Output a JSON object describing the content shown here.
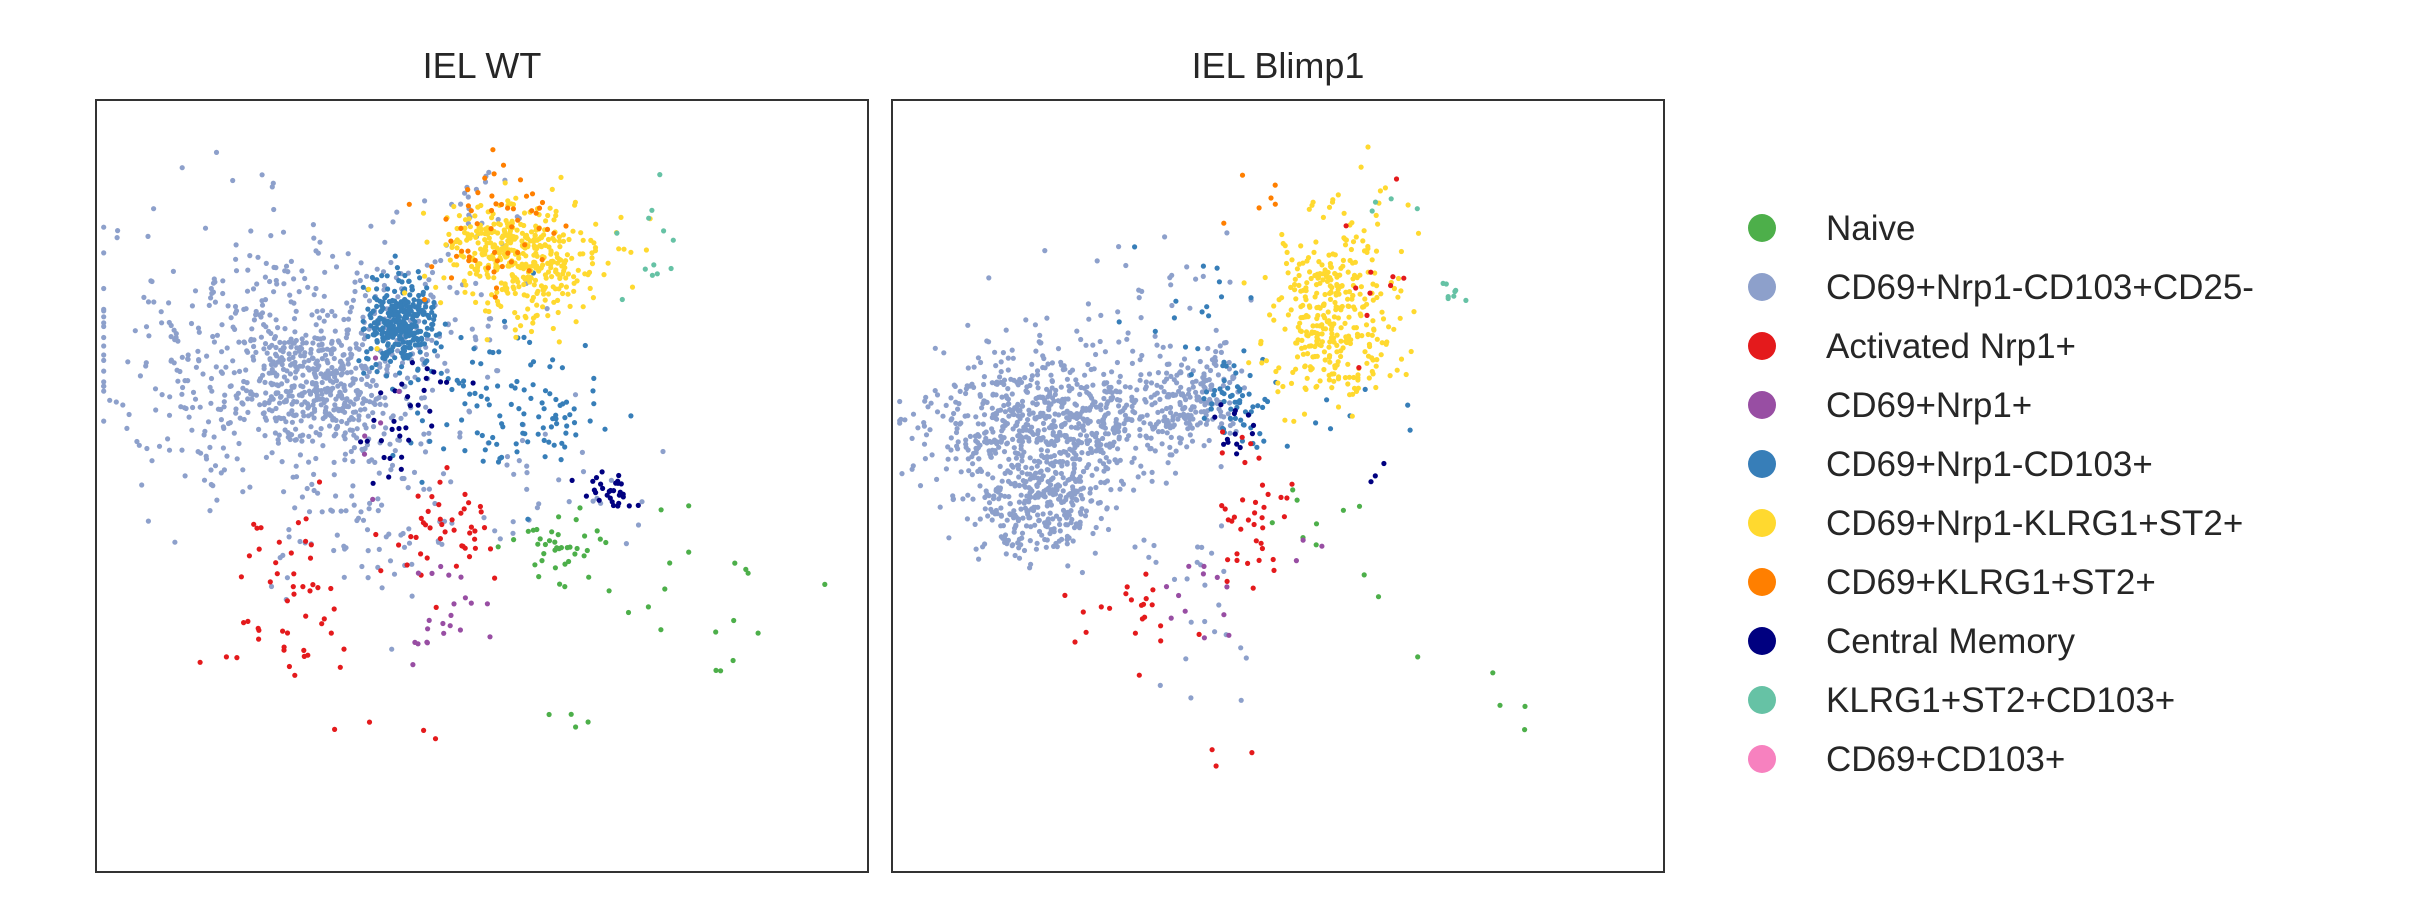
{
  "chart_data": {
    "type": "scatter",
    "panels": [
      {
        "title": "IEL WT",
        "xlabel": "",
        "ylabel": "",
        "xlim": [
          0,
          100
        ],
        "ylim": [
          0,
          100
        ],
        "grid": false,
        "ticks": false,
        "clusters": [
          {
            "category": "CD69+Nrp1-CD103+CD25-",
            "cx": 23,
            "cy": 66,
            "sx": 11,
            "sy": 9,
            "n": 520
          },
          {
            "category": "CD69+Nrp1-CD103+CD25-",
            "cx": 29,
            "cy": 63,
            "sx": 4,
            "sy": 3.5,
            "n": 260
          },
          {
            "category": "CD69+Nrp1-CD103+CD25-",
            "cx": 40,
            "cy": 70,
            "sx": 7,
            "sy": 6,
            "n": 120
          },
          {
            "category": "CD69+Nrp1-CD103+CD25-",
            "cx": 36,
            "cy": 45,
            "sx": 6,
            "sy": 6,
            "n": 80
          },
          {
            "category": "CD69+Nrp1-CD103+CD25-",
            "cx": 49,
            "cy": 86,
            "sx": 2,
            "sy": 2,
            "n": 20
          },
          {
            "category": "CD69+Nrp1-CD103+CD25-",
            "cx": 58,
            "cy": 50,
            "sx": 6,
            "sy": 5,
            "n": 30
          },
          {
            "category": "CD69+Nrp1-CD103+",
            "cx": 39.5,
            "cy": 71,
            "sx": 2.2,
            "sy": 2.8,
            "n": 320
          },
          {
            "category": "CD69+Nrp1-CD103+",
            "cx": 52,
            "cy": 61,
            "sx": 7,
            "sy": 5,
            "n": 90
          },
          {
            "category": "CD69+Nrp1-CD103+",
            "cx": 60,
            "cy": 58,
            "sx": 3,
            "sy": 2,
            "n": 25
          },
          {
            "category": "CD69+Nrp1-KLRG1+ST2+",
            "cx": 56,
            "cy": 79,
            "sx": 5,
            "sy": 4,
            "n": 330
          },
          {
            "category": "CD69+Nrp1-KLRG1+ST2+",
            "cx": 51,
            "cy": 81,
            "sx": 3,
            "sy": 2.5,
            "n": 90
          },
          {
            "category": "CD69+KLRG1+ST2+",
            "cx": 52,
            "cy": 83,
            "sx": 5,
            "sy": 5,
            "n": 55
          },
          {
            "category": "Central Memory",
            "cx": 41,
            "cy": 62,
            "sx": 3,
            "sy": 3,
            "n": 20
          },
          {
            "category": "Central Memory",
            "cx": 66,
            "cy": 49,
            "sx": 1.6,
            "sy": 1.3,
            "n": 30
          },
          {
            "category": "Central Memory",
            "cx": 38,
            "cy": 55,
            "sx": 1.5,
            "sy": 2,
            "n": 12
          },
          {
            "category": "Activated Nrp1+",
            "cx": 24,
            "cy": 35,
            "sx": 5,
            "sy": 6,
            "n": 50
          },
          {
            "category": "Activated Nrp1+",
            "cx": 46,
            "cy": 44,
            "sx": 4,
            "sy": 3,
            "n": 45
          },
          {
            "category": "Activated Nrp1+",
            "cx": 40,
            "cy": 20,
            "sx": 3,
            "sy": 1.5,
            "n": 4
          },
          {
            "category": "Naive",
            "cx": 60,
            "cy": 42,
            "sx": 3,
            "sy": 2.5,
            "n": 40
          },
          {
            "category": "Naive",
            "cx": 78,
            "cy": 36,
            "sx": 7,
            "sy": 6,
            "n": 18
          },
          {
            "category": "Naive",
            "cx": 63,
            "cy": 20,
            "sx": 4,
            "sy": 1,
            "n": 4
          },
          {
            "category": "CD69+Nrp1+",
            "cx": 44,
            "cy": 33,
            "sx": 3,
            "sy": 4,
            "n": 22
          },
          {
            "category": "CD69+Nrp1+",
            "cx": 35,
            "cy": 55,
            "sx": 6,
            "sy": 6,
            "n": 6
          },
          {
            "category": "KLRG1+ST2+CD103+",
            "cx": 72,
            "cy": 79,
            "sx": 2,
            "sy": 4,
            "n": 12
          }
        ]
      },
      {
        "title": "IEL Blimp1",
        "xlabel": "",
        "ylabel": "",
        "xlim": [
          0,
          100
        ],
        "ylim": [
          0,
          100
        ],
        "grid": false,
        "ticks": false,
        "clusters": [
          {
            "category": "CD69+Nrp1-CD103+CD25-",
            "cx": 19,
            "cy": 58,
            "sx": 7,
            "sy": 5,
            "n": 650
          },
          {
            "category": "CD69+Nrp1-CD103+CD25-",
            "cx": 19,
            "cy": 47,
            "sx": 4,
            "sy": 3.5,
            "n": 260
          },
          {
            "category": "CD69+Nrp1-CD103+CD25-",
            "cx": 32,
            "cy": 59,
            "sx": 5,
            "sy": 3,
            "n": 160
          },
          {
            "category": "CD69+Nrp1-CD103+CD25-",
            "cx": 40,
            "cy": 62,
            "sx": 3,
            "sy": 2.5,
            "n": 120
          },
          {
            "category": "CD69+Nrp1-CD103+CD25-",
            "cx": 35,
            "cy": 72,
            "sx": 8,
            "sy": 6,
            "n": 40
          },
          {
            "category": "CD69+Nrp1-CD103+CD25-",
            "cx": 40,
            "cy": 37,
            "sx": 4,
            "sy": 6,
            "n": 25
          },
          {
            "category": "CD69+Nrp1-CD103+",
            "cx": 45,
            "cy": 61,
            "sx": 2.5,
            "sy": 2.5,
            "n": 60
          },
          {
            "category": "CD69+Nrp1-CD103+",
            "cx": 39,
            "cy": 75,
            "sx": 5,
            "sy": 4,
            "n": 15
          },
          {
            "category": "CD69+Nrp1-CD103+",
            "cx": 58,
            "cy": 58,
            "sx": 4,
            "sy": 2,
            "n": 8
          },
          {
            "category": "CD69+Nrp1-KLRG1+ST2+",
            "cx": 57,
            "cy": 72,
            "sx": 4,
            "sy": 5,
            "n": 330
          },
          {
            "category": "CD69+Nrp1-KLRG1+ST2+",
            "cx": 60,
            "cy": 82,
            "sx": 4,
            "sy": 4,
            "n": 40
          },
          {
            "category": "Central Memory",
            "cx": 45,
            "cy": 57,
            "sx": 1.8,
            "sy": 2,
            "n": 14
          },
          {
            "category": "Central Memory",
            "cx": 63,
            "cy": 53,
            "sx": 2,
            "sy": 2,
            "n": 3
          },
          {
            "category": "Activated Nrp1+",
            "cx": 46,
            "cy": 46,
            "sx": 2.5,
            "sy": 4,
            "n": 38
          },
          {
            "category": "Activated Nrp1+",
            "cx": 30,
            "cy": 34,
            "sx": 6,
            "sy": 4,
            "n": 22
          },
          {
            "category": "Activated Nrp1+",
            "cx": 62,
            "cy": 76,
            "sx": 3,
            "sy": 5,
            "n": 10
          },
          {
            "category": "Activated Nrp1+",
            "cx": 45,
            "cy": 15,
            "sx": 3,
            "sy": 1,
            "n": 3
          },
          {
            "category": "Naive",
            "cx": 56,
            "cy": 44,
            "sx": 3,
            "sy": 4,
            "n": 10
          },
          {
            "category": "Naive",
            "cx": 76,
            "cy": 25,
            "sx": 8,
            "sy": 4,
            "n": 5
          },
          {
            "category": "CD69+Nrp1+",
            "cx": 40,
            "cy": 34,
            "sx": 3,
            "sy": 6,
            "n": 12
          },
          {
            "category": "CD69+Nrp1+",
            "cx": 55,
            "cy": 42,
            "sx": 3,
            "sy": 2,
            "n": 3
          },
          {
            "category": "KLRG1+ST2+CD103+",
            "cx": 73,
            "cy": 75,
            "sx": 0.8,
            "sy": 0.8,
            "n": 8
          },
          {
            "category": "KLRG1+ST2+CD103+",
            "cx": 66,
            "cy": 87,
            "sx": 3,
            "sy": 2,
            "n": 4
          },
          {
            "category": "CD69+KLRG1+ST2+",
            "cx": 48,
            "cy": 87,
            "sx": 4,
            "sy": 1.5,
            "n": 6
          }
        ]
      }
    ],
    "legend": {
      "placement": "right",
      "entries": [
        {
          "label": "Naive",
          "color": "#4daf4a"
        },
        {
          "label": "CD69+Nrp1-CD103+CD25-",
          "color": "#8da0cb"
        },
        {
          "label": "Activated Nrp1+",
          "color": "#e41a1c"
        },
        {
          "label": "CD69+Nrp1+",
          "color": "#984ea3"
        },
        {
          "label": "CD69+Nrp1-CD103+",
          "color": "#377eb8"
        },
        {
          "label": "CD69+Nrp1-KLRG1+ST2+",
          "color": "#ffd92f"
        },
        {
          "label": "CD69+KLRG1+ST2+",
          "color": "#ff7f00"
        },
        {
          "label": "Central Memory",
          "color": "#000080"
        },
        {
          "label": "KLRG1+ST2+CD103+",
          "color": "#66c2a5"
        },
        {
          "label": "CD69+CD103+",
          "color": "#f781bf"
        }
      ]
    }
  }
}
